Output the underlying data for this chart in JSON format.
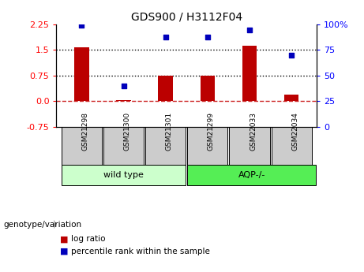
{
  "title": "GDS900 / H3112F04",
  "categories": [
    "GSM21298",
    "GSM21300",
    "GSM21301",
    "GSM21299",
    "GSM22033",
    "GSM22034"
  ],
  "log_ratio": [
    1.58,
    0.02,
    0.75,
    0.75,
    1.62,
    0.18
  ],
  "percentile_rank": [
    99,
    40,
    88,
    88,
    95,
    70
  ],
  "ylim_left": [
    -0.75,
    2.25
  ],
  "ylim_right": [
    0,
    100
  ],
  "yticks_left": [
    -0.75,
    0.0,
    0.75,
    1.5,
    2.25
  ],
  "yticks_right": [
    0,
    25,
    50,
    75,
    100
  ],
  "hlines": [
    0.75,
    1.5
  ],
  "hline_zero": 0.0,
  "bar_color": "#bb0000",
  "scatter_color": "#0000bb",
  "wild_type_label": "wild type",
  "aqp_label": "AQP-/-",
  "genotype_label": "genotype/variation",
  "legend_log_ratio": "log ratio",
  "legend_percentile": "percentile rank within the sample",
  "wild_type_color": "#ccffcc",
  "aqp_color": "#55ee55",
  "sample_box_color": "#cccccc",
  "zero_line_color": "#cc2222",
  "hline_color": "#000000",
  "bar_width": 0.35
}
